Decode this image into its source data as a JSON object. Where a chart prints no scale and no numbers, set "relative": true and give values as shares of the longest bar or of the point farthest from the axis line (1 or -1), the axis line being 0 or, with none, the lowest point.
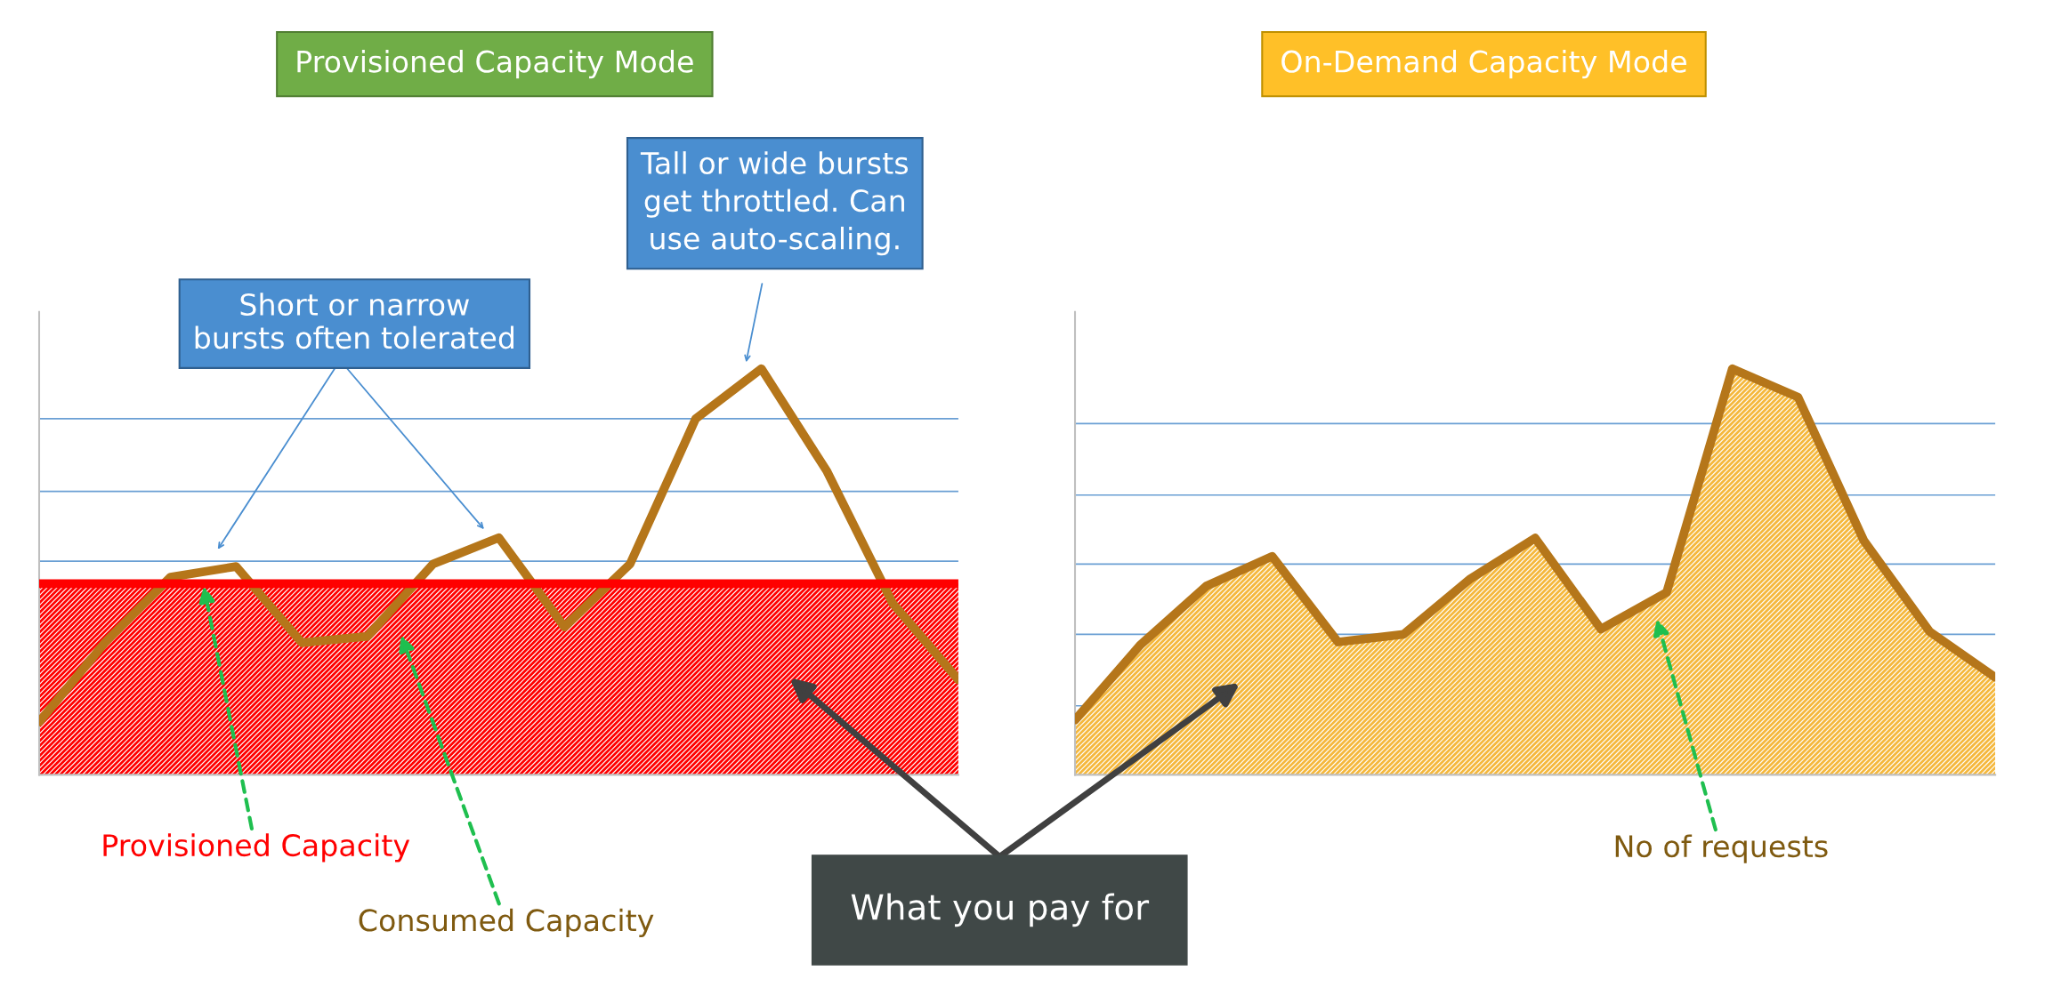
{
  "chart_data": [
    {
      "type": "line",
      "title": "Provisioned Capacity Mode",
      "relative": true,
      "categories": [
        null,
        null,
        null,
        null,
        null,
        null,
        null,
        null,
        null,
        null,
        null,
        null,
        null,
        null,
        null
      ],
      "series": [
        {
          "name": "Consumed Capacity",
          "color": "#b5761a",
          "values": [
            0.13,
            0.325,
            0.487,
            0.513,
            0.325,
            0.341,
            0.519,
            0.584,
            0.364,
            0.519,
            0.877,
            1.0,
            0.747,
            0.422,
            0.234
          ]
        }
      ],
      "ref_lines": [
        {
          "axis": "y",
          "value": 0.471,
          "label": "Provisioned Capacity",
          "color": "#ff0000"
        },
        {
          "axis": "y",
          "value": 0.172,
          "color": "#6a9fd4"
        },
        {
          "axis": "y",
          "value": 0.351,
          "color": "#6a9fd4"
        },
        {
          "axis": "y",
          "value": 0.526,
          "color": "#6a9fd4"
        },
        {
          "axis": "y",
          "value": 0.698,
          "color": "#6a9fd4"
        },
        {
          "axis": "y",
          "value": 0.877,
          "color": "#6a9fd4"
        }
      ],
      "bands": [
        {
          "axis": "y",
          "from": 0,
          "to": 0.471,
          "color": "#ff0000"
        }
      ],
      "annotations": [
        "Short or narrow\nbursts often tolerated",
        "Tall or wide bursts\nget throttled. Can\nuse auto-scaling.",
        "What you pay for"
      ]
    },
    {
      "type": "area",
      "title": "On-Demand Capacity Mode",
      "relative": true,
      "categories": [
        null,
        null,
        null,
        null,
        null,
        null,
        null,
        null,
        null,
        null,
        null,
        null,
        null,
        null,
        null
      ],
      "series": [
        {
          "name": "No of requests",
          "color": "#f5b83d",
          "values": [
            0.135,
            0.321,
            0.465,
            0.538,
            0.327,
            0.346,
            0.481,
            0.583,
            0.359,
            0.449,
            1.0,
            0.93,
            0.577,
            0.353,
            0.24
          ]
        }
      ],
      "ref_lines": [
        {
          "axis": "y",
          "value": 0.17,
          "color": "#6a9fd4"
        },
        {
          "axis": "y",
          "value": 0.346,
          "color": "#6a9fd4"
        },
        {
          "axis": "y",
          "value": 0.519,
          "color": "#6a9fd4"
        },
        {
          "axis": "y",
          "value": 0.689,
          "color": "#6a9fd4"
        },
        {
          "axis": "y",
          "value": 0.865,
          "color": "#6a9fd4"
        }
      ]
    }
  ]
}
